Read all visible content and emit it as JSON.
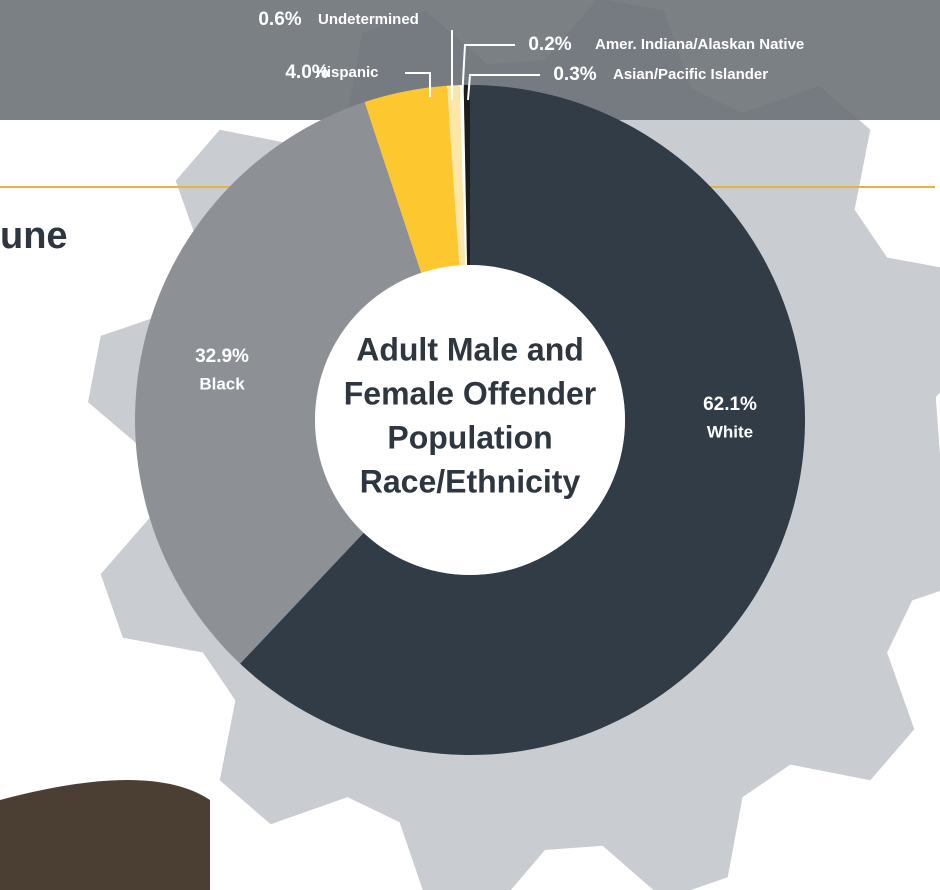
{
  "heading_fragment": "une",
  "chart_data": {
    "type": "donut",
    "title": [
      "Adult Male and",
      "Female Offender",
      "Population",
      "Race/Ethnicity"
    ],
    "categories": [
      "White",
      "Black",
      "Hispanic",
      "Undetermined",
      "Amer. Indiana/Alaskan Native",
      "Asian/Pacific Islander"
    ],
    "values": [
      62.1,
      32.9,
      4.0,
      0.6,
      0.2,
      0.3
    ],
    "value_labels": [
      "62.1%",
      "32.9%",
      "4.0%",
      "0.6%",
      "0.2%",
      "0.3%"
    ],
    "colors": [
      "#323c46",
      "#8d9196",
      "#fdc82f",
      "#fde7a6",
      "#ffffff",
      "#1c1c1c"
    ]
  }
}
